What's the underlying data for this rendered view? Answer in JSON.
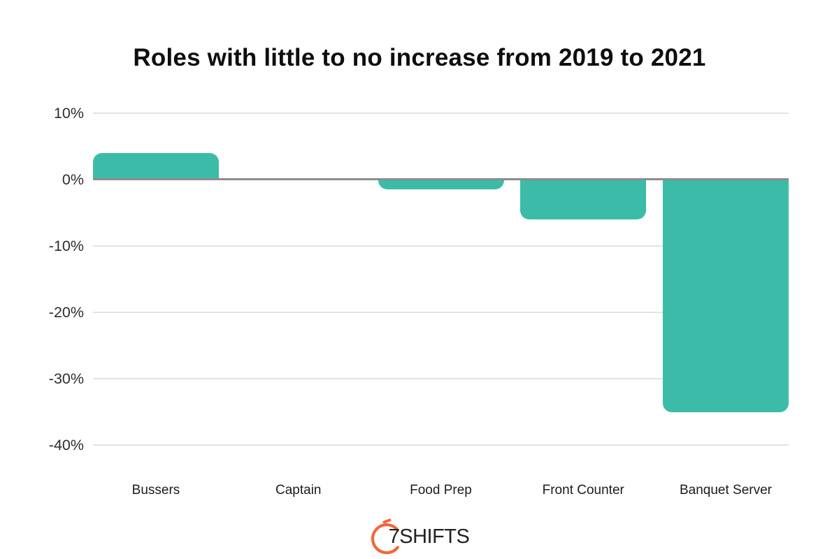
{
  "chart_data": {
    "type": "bar",
    "title": "Roles with little to no increase from 2019 to 2021",
    "categories": [
      "Bussers",
      "Captain",
      "Food Prep",
      "Front Counter",
      "Banquet Server"
    ],
    "values": [
      4,
      0,
      -1.5,
      -6,
      -35
    ],
    "unit": "%",
    "xlabel": "",
    "ylabel": "",
    "ylim": [
      -40,
      10
    ],
    "yticks": [
      10,
      0,
      -10,
      -20,
      -30,
      -40
    ],
    "ytick_labels": [
      "10%",
      "0%",
      "-10%",
      "-20%",
      "-30%",
      "-40%"
    ],
    "grid": true,
    "legend": "none",
    "bar_color": "#3cbca8",
    "gridline_color": "#e3e3e3",
    "zero_line_color": "#8c8c8c",
    "background_color": "#ffffff"
  },
  "footer": {
    "logo_seven": "7",
    "logo_rest": "SHIFTS",
    "logo_arc_color": "#f2683c",
    "logo_text_color": "#222222"
  }
}
